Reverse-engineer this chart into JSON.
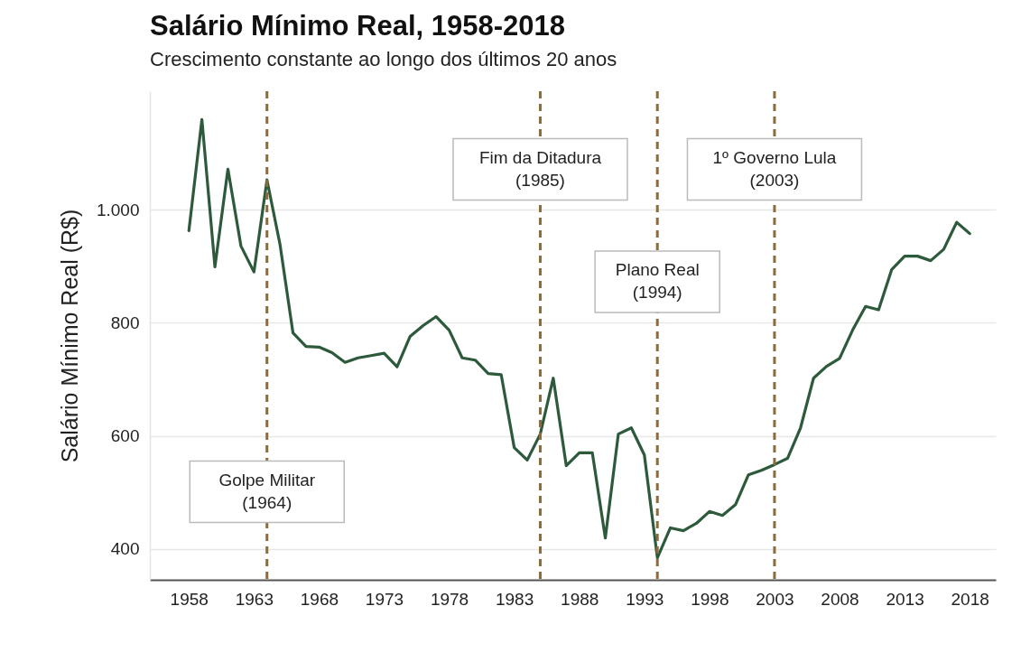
{
  "chart_data": {
    "type": "line",
    "title": "Salário Mínimo Real, 1958-2018",
    "subtitle": "Crescimento constante ao longo dos últimos 20 anos",
    "ylabel": "Salário Mínimo Real (R$)",
    "x": [
      1958,
      1959,
      1960,
      1961,
      1962,
      1963,
      1964,
      1965,
      1966,
      1967,
      1968,
      1969,
      1970,
      1971,
      1972,
      1973,
      1974,
      1975,
      1976,
      1977,
      1978,
      1979,
      1980,
      1981,
      1982,
      1983,
      1984,
      1985,
      1986,
      1987,
      1988,
      1989,
      1990,
      1991,
      1992,
      1993,
      1994,
      1995,
      1996,
      1997,
      1998,
      1999,
      2000,
      2001,
      2002,
      2003,
      2004,
      2005,
      2006,
      2007,
      2008,
      2009,
      2010,
      2011,
      2012,
      2013,
      2014,
      2015,
      2016,
      2017,
      2018
    ],
    "series": [
      {
        "color": "#2e5a3c",
        "values": [
          963,
          1160,
          899,
          1072,
          936,
          890,
          1053,
          939,
          782,
          758,
          757,
          747,
          730,
          738,
          742,
          746,
          722,
          776,
          795,
          811,
          787,
          738,
          734,
          710,
          708,
          579,
          557,
          603,
          702,
          547,
          570,
          570,
          419,
          603,
          614,
          566,
          384,
          437,
          432,
          445,
          466,
          459,
          478,
          531,
          539,
          549,
          560,
          614,
          702,
          723,
          737,
          787,
          829,
          823,
          894,
          918,
          918,
          910,
          930,
          978,
          958
        ]
      }
    ],
    "xlim": [
      1955,
      2020
    ],
    "xticks": [
      1958,
      1963,
      1968,
      1973,
      1978,
      1983,
      1988,
      1993,
      1998,
      2003,
      2008,
      2013,
      2018
    ],
    "ylim": [
      345,
      1210
    ],
    "yticks": [
      400,
      600,
      800,
      {
        "value": 1000,
        "label": "1.000"
      }
    ],
    "grid": "y",
    "line_style": "solid",
    "marker": "none",
    "ref_lines": [
      {
        "axis": "x",
        "value": 1964,
        "label": "Golpe Militar\n(1964)",
        "color": "#8b6a3e",
        "line_style": "dashed"
      },
      {
        "axis": "x",
        "value": 1985,
        "label": "Fim da Ditadura\n(1985)",
        "color": "#8b6a3e",
        "line_style": "dashed"
      },
      {
        "axis": "x",
        "value": 1994,
        "label": "Plano Real\n(1994)",
        "color": "#8b6a3e",
        "line_style": "dashed"
      },
      {
        "axis": "x",
        "value": 2003,
        "label": "1º Governo Lula\n(2003)",
        "color": "#8b6a3e",
        "line_style": "dashed"
      }
    ]
  }
}
